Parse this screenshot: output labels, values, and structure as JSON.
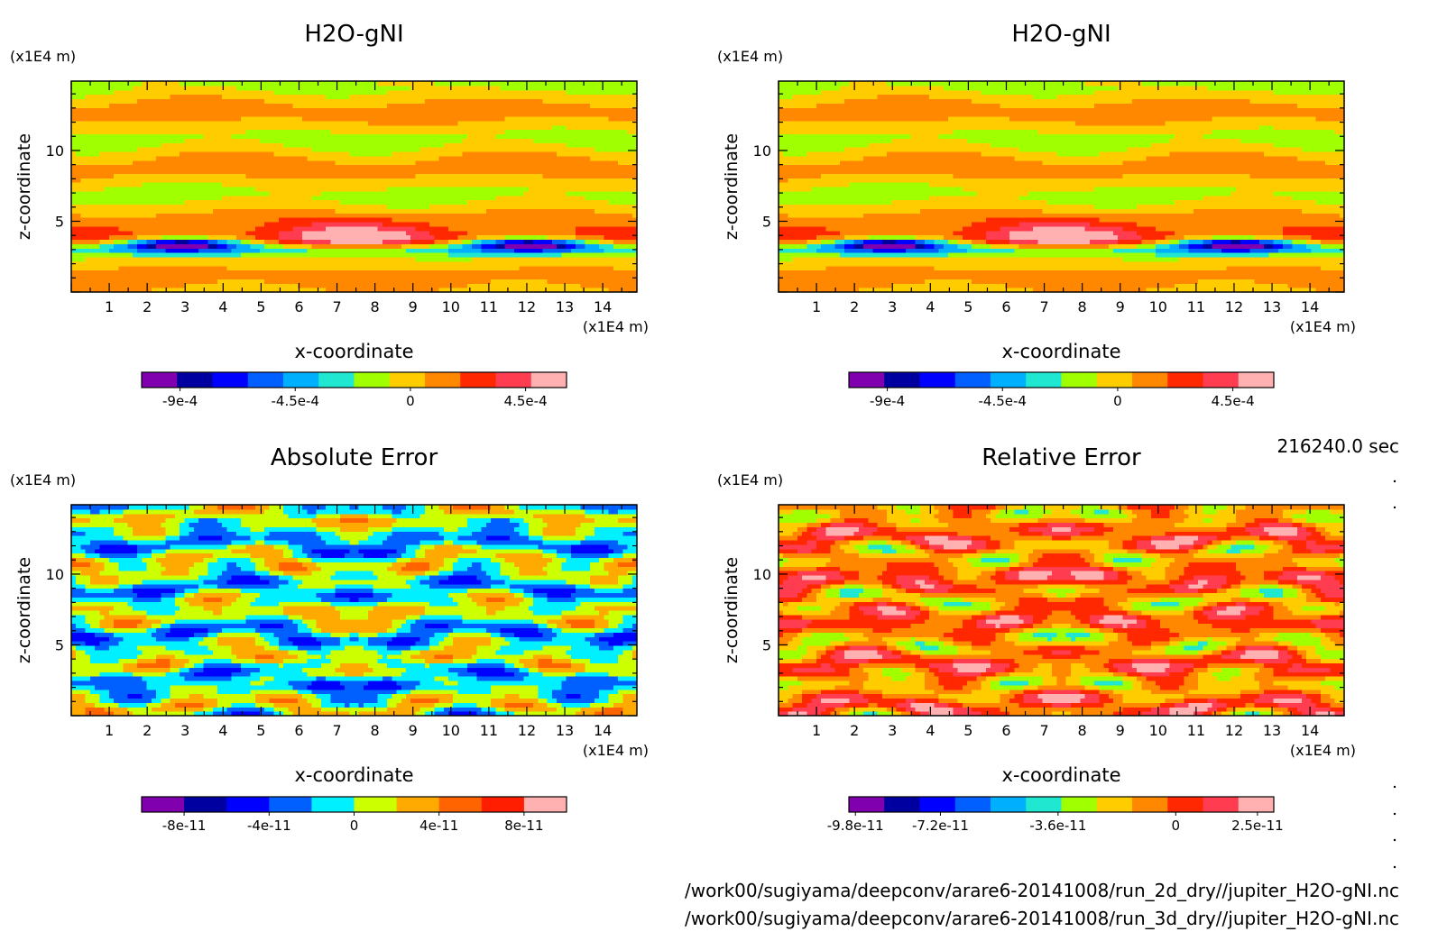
{
  "chart_data": [
    {
      "type": "heatmap",
      "title": "H2O-gNI",
      "xlabel": "x-coordinate",
      "ylabel": "z-coordinate",
      "x_unit": "(x1E4 m)",
      "y_unit": "(x1E4 m)",
      "xlim": [
        0,
        14.9
      ],
      "ylim": [
        0,
        14.9
      ],
      "x_ticks": [
        "1",
        "2",
        "3",
        "4",
        "5",
        "6",
        "7",
        "8",
        "9",
        "10",
        "11",
        "12",
        "13",
        "14"
      ],
      "y_ticks": [
        "5",
        "10"
      ],
      "colorbar": {
        "colors": [
          "#8000b0",
          "#0000a0",
          "#0000ff",
          "#0060ff",
          "#00b0ff",
          "#20e8d0",
          "#a0ff00",
          "#ffcc00",
          "#ff8800",
          "#ff2800",
          "#ff3c50",
          "#ffb0b0"
        ],
        "labels": [
          "-9e-4",
          "-4.5e-4",
          "0",
          "4.5e-4"
        ],
        "range": [
          -0.00105,
          0.00061
        ]
      },
      "pattern": "field"
    },
    {
      "type": "heatmap",
      "title": "H2O-gNI",
      "xlabel": "x-coordinate",
      "ylabel": "z-coordinate",
      "x_unit": "(x1E4 m)",
      "y_unit": "(x1E4 m)",
      "xlim": [
        0,
        14.9
      ],
      "ylim": [
        0,
        14.9
      ],
      "x_ticks": [
        "1",
        "2",
        "3",
        "4",
        "5",
        "6",
        "7",
        "8",
        "9",
        "10",
        "11",
        "12",
        "13",
        "14"
      ],
      "y_ticks": [
        "5",
        "10"
      ],
      "colorbar": {
        "colors": [
          "#8000b0",
          "#0000a0",
          "#0000ff",
          "#0060ff",
          "#00b0ff",
          "#20e8d0",
          "#a0ff00",
          "#ffcc00",
          "#ff8800",
          "#ff2800",
          "#ff3c50",
          "#ffb0b0"
        ],
        "labels": [
          "-9e-4",
          "-4.5e-4",
          "0",
          "4.5e-4"
        ],
        "range": [
          -0.00105,
          0.00061
        ]
      },
      "pattern": "field"
    },
    {
      "type": "heatmap",
      "title": "Absolute Error",
      "xlabel": "x-coordinate",
      "ylabel": "z-coordinate",
      "x_unit": "(x1E4 m)",
      "y_unit": "(x1E4 m)",
      "xlim": [
        0,
        14.9
      ],
      "ylim": [
        0,
        14.9
      ],
      "x_ticks": [
        "1",
        "2",
        "3",
        "4",
        "5",
        "6",
        "7",
        "8",
        "9",
        "10",
        "11",
        "12",
        "13",
        "14"
      ],
      "y_ticks": [
        "5",
        "10"
      ],
      "colorbar": {
        "colors": [
          "#8000b0",
          "#0000a0",
          "#0000ff",
          "#0060ff",
          "#00f0ff",
          "#ccff00",
          "#ffaa00",
          "#ff6400",
          "#ff1e00",
          "#ffb0b0"
        ],
        "labels": [
          "-8e-11",
          "-4e-11",
          "0",
          "4e-11",
          "8e-11"
        ],
        "range": [
          -1e-10,
          1e-10
        ]
      },
      "pattern": "abs"
    },
    {
      "type": "heatmap",
      "title": "Relative Error",
      "xlabel": "x-coordinate",
      "ylabel": "z-coordinate",
      "x_unit": "(x1E4 m)",
      "y_unit": "(x1E4 m)",
      "xlim": [
        0,
        14.9
      ],
      "ylim": [
        0,
        14.9
      ],
      "x_ticks": [
        "1",
        "2",
        "3",
        "4",
        "5",
        "6",
        "7",
        "8",
        "9",
        "10",
        "11",
        "12",
        "13",
        "14"
      ],
      "y_ticks": [
        "5",
        "10"
      ],
      "colorbar": {
        "colors": [
          "#8000b0",
          "#0000a0",
          "#0000ff",
          "#0060ff",
          "#00b0ff",
          "#20e8d0",
          "#a0ff00",
          "#ffcc00",
          "#ff8800",
          "#ff2800",
          "#ff3c50",
          "#ffb0b0"
        ],
        "labels": [
          "-9.8e-11",
          "-7.2e-11",
          "-3.6e-11",
          "0",
          "2.5e-11"
        ],
        "range": [
          -1e-10,
          3e-11
        ]
      },
      "pattern": "rel"
    }
  ],
  "time_label": "216240.0 sec",
  "files": [
    "/work00/sugiyama/deepconv/arare6-20141008/run_2d_dry//jupiter_H2O-gNI.nc",
    "/work00/sugiyama/deepconv/arare6-20141008/run_3d_dry//jupiter_H2O-gNI.nc"
  ]
}
